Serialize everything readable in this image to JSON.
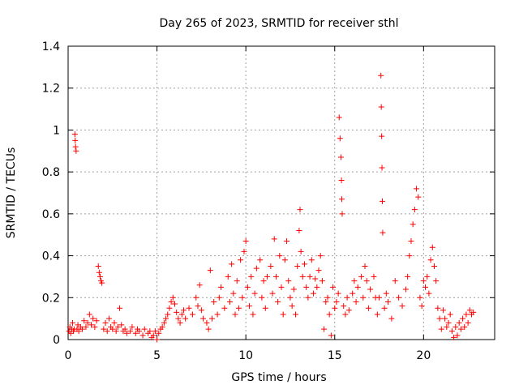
{
  "chart_data": {
    "type": "scatter",
    "title": "Day 265 of 2023, SRMTID for receiver sthl",
    "xlabel": "GPS time / hours",
    "ylabel": "SRMTID / TECUs",
    "xlim": [
      0,
      24
    ],
    "ylim": [
      0,
      1.4
    ],
    "xticks": [
      0,
      5,
      10,
      15,
      20
    ],
    "xtick_labels": [
      "0",
      "5",
      "10",
      "15",
      "20"
    ],
    "yticks": [
      0,
      0.2,
      0.4,
      0.6,
      0.8,
      1.0,
      1.2,
      1.4
    ],
    "ytick_labels": [
      "0",
      "0.2",
      "0.4",
      "0.6",
      "0.8",
      "1",
      "1.2",
      "1.4"
    ],
    "grid": true,
    "marker": "+",
    "marker_color": "#ff0000",
    "series": [
      {
        "name": "SRMTID",
        "points": [
          [
            0.05,
            0.04
          ],
          [
            0.1,
            0.06
          ],
          [
            0.15,
            0.03
          ],
          [
            0.2,
            0.05
          ],
          [
            0.25,
            0.08
          ],
          [
            0.3,
            0.04
          ],
          [
            0.35,
            0.05
          ],
          [
            0.38,
            0.98
          ],
          [
            0.4,
            0.95
          ],
          [
            0.42,
            0.92
          ],
          [
            0.45,
            0.9
          ],
          [
            0.5,
            0.05
          ],
          [
            0.55,
            0.07
          ],
          [
            0.6,
            0.04
          ],
          [
            0.7,
            0.06
          ],
          [
            0.8,
            0.05
          ],
          [
            0.9,
            0.09
          ],
          [
            1.0,
            0.06
          ],
          [
            1.1,
            0.08
          ],
          [
            1.2,
            0.12
          ],
          [
            1.3,
            0.07
          ],
          [
            1.4,
            0.1
          ],
          [
            1.5,
            0.06
          ],
          [
            1.6,
            0.09
          ],
          [
            1.7,
            0.35
          ],
          [
            1.75,
            0.32
          ],
          [
            1.8,
            0.3
          ],
          [
            1.85,
            0.28
          ],
          [
            1.9,
            0.27
          ],
          [
            2.0,
            0.05
          ],
          [
            2.1,
            0.08
          ],
          [
            2.2,
            0.04
          ],
          [
            2.3,
            0.1
          ],
          [
            2.4,
            0.06
          ],
          [
            2.5,
            0.05
          ],
          [
            2.6,
            0.08
          ],
          [
            2.7,
            0.04
          ],
          [
            2.8,
            0.06
          ],
          [
            2.9,
            0.15
          ],
          [
            3.0,
            0.07
          ],
          [
            3.1,
            0.04
          ],
          [
            3.2,
            0.05
          ],
          [
            3.3,
            0.03
          ],
          [
            3.5,
            0.04
          ],
          [
            3.6,
            0.06
          ],
          [
            3.8,
            0.03
          ],
          [
            3.9,
            0.05
          ],
          [
            4.0,
            0.04
          ],
          [
            4.2,
            0.02
          ],
          [
            4.3,
            0.05
          ],
          [
            4.5,
            0.03
          ],
          [
            4.6,
            0.04
          ],
          [
            4.7,
            0.01
          ],
          [
            4.8,
            0.02
          ],
          [
            4.9,
            0.04
          ],
          [
            5.0,
            0.0
          ],
          [
            5.1,
            0.03
          ],
          [
            5.2,
            0.05
          ],
          [
            5.3,
            0.06
          ],
          [
            5.4,
            0.08
          ],
          [
            5.5,
            0.1
          ],
          [
            5.6,
            0.12
          ],
          [
            5.7,
            0.15
          ],
          [
            5.8,
            0.18
          ],
          [
            5.9,
            0.2
          ],
          [
            6.0,
            0.17
          ],
          [
            6.1,
            0.13
          ],
          [
            6.2,
            0.1
          ],
          [
            6.3,
            0.08
          ],
          [
            6.4,
            0.12
          ],
          [
            6.5,
            0.14
          ],
          [
            6.6,
            0.1
          ],
          [
            6.8,
            0.15
          ],
          [
            7.0,
            0.12
          ],
          [
            7.2,
            0.2
          ],
          [
            7.3,
            0.16
          ],
          [
            7.4,
            0.26
          ],
          [
            7.5,
            0.14
          ],
          [
            7.6,
            0.1
          ],
          [
            7.8,
            0.08
          ],
          [
            7.9,
            0.05
          ],
          [
            8.0,
            0.33
          ],
          [
            8.1,
            0.1
          ],
          [
            8.2,
            0.18
          ],
          [
            8.4,
            0.12
          ],
          [
            8.5,
            0.2
          ],
          [
            8.6,
            0.25
          ],
          [
            8.8,
            0.15
          ],
          [
            9.0,
            0.3
          ],
          [
            9.1,
            0.18
          ],
          [
            9.2,
            0.36
          ],
          [
            9.3,
            0.22
          ],
          [
            9.4,
            0.12
          ],
          [
            9.5,
            0.28
          ],
          [
            9.6,
            0.15
          ],
          [
            9.7,
            0.38
          ],
          [
            9.8,
            0.2
          ],
          [
            9.9,
            0.42
          ],
          [
            10.0,
            0.47
          ],
          [
            10.1,
            0.25
          ],
          [
            10.2,
            0.16
          ],
          [
            10.3,
            0.3
          ],
          [
            10.4,
            0.12
          ],
          [
            10.5,
            0.22
          ],
          [
            10.6,
            0.34
          ],
          [
            10.8,
            0.38
          ],
          [
            10.9,
            0.2
          ],
          [
            11.0,
            0.28
          ],
          [
            11.1,
            0.15
          ],
          [
            11.2,
            0.3
          ],
          [
            11.4,
            0.35
          ],
          [
            11.5,
            0.22
          ],
          [
            11.6,
            0.48
          ],
          [
            11.7,
            0.3
          ],
          [
            11.8,
            0.18
          ],
          [
            11.9,
            0.4
          ],
          [
            12.0,
            0.25
          ],
          [
            12.1,
            0.12
          ],
          [
            12.2,
            0.38
          ],
          [
            12.3,
            0.47
          ],
          [
            12.4,
            0.28
          ],
          [
            12.5,
            0.2
          ],
          [
            12.6,
            0.16
          ],
          [
            12.7,
            0.24
          ],
          [
            12.8,
            0.12
          ],
          [
            12.9,
            0.35
          ],
          [
            13.0,
            0.52
          ],
          [
            13.05,
            0.62
          ],
          [
            13.1,
            0.42
          ],
          [
            13.2,
            0.3
          ],
          [
            13.3,
            0.36
          ],
          [
            13.4,
            0.25
          ],
          [
            13.5,
            0.2
          ],
          [
            13.6,
            0.3
          ],
          [
            13.7,
            0.38
          ],
          [
            13.8,
            0.22
          ],
          [
            13.9,
            0.29
          ],
          [
            14.0,
            0.25
          ],
          [
            14.1,
            0.33
          ],
          [
            14.2,
            0.4
          ],
          [
            14.3,
            0.28
          ],
          [
            14.4,
            0.05
          ],
          [
            14.5,
            0.18
          ],
          [
            14.6,
            0.2
          ],
          [
            14.7,
            0.12
          ],
          [
            14.8,
            0.02
          ],
          [
            14.9,
            0.25
          ],
          [
            15.0,
            0.15
          ],
          [
            15.1,
            0.18
          ],
          [
            15.2,
            0.22
          ],
          [
            15.25,
            1.06
          ],
          [
            15.3,
            0.96
          ],
          [
            15.35,
            0.87
          ],
          [
            15.38,
            0.76
          ],
          [
            15.4,
            0.67
          ],
          [
            15.42,
            0.6
          ],
          [
            15.5,
            0.16
          ],
          [
            15.6,
            0.12
          ],
          [
            15.7,
            0.2
          ],
          [
            15.8,
            0.14
          ],
          [
            16.0,
            0.22
          ],
          [
            16.1,
            0.28
          ],
          [
            16.2,
            0.18
          ],
          [
            16.3,
            0.25
          ],
          [
            16.5,
            0.3
          ],
          [
            16.6,
            0.2
          ],
          [
            16.7,
            0.35
          ],
          [
            16.8,
            0.28
          ],
          [
            16.9,
            0.15
          ],
          [
            17.0,
            0.24
          ],
          [
            17.2,
            0.3
          ],
          [
            17.3,
            0.2
          ],
          [
            17.4,
            0.12
          ],
          [
            17.5,
            0.2
          ],
          [
            17.6,
            1.26
          ],
          [
            17.62,
            1.11
          ],
          [
            17.64,
            0.97
          ],
          [
            17.66,
            0.82
          ],
          [
            17.68,
            0.66
          ],
          [
            17.7,
            0.51
          ],
          [
            17.8,
            0.15
          ],
          [
            17.9,
            0.22
          ],
          [
            18.0,
            0.18
          ],
          [
            18.2,
            0.1
          ],
          [
            18.4,
            0.28
          ],
          [
            18.6,
            0.2
          ],
          [
            18.8,
            0.16
          ],
          [
            19.0,
            0.24
          ],
          [
            19.1,
            0.3
          ],
          [
            19.2,
            0.4
          ],
          [
            19.3,
            0.47
          ],
          [
            19.4,
            0.55
          ],
          [
            19.5,
            0.62
          ],
          [
            19.6,
            0.72
          ],
          [
            19.7,
            0.68
          ],
          [
            19.8,
            0.2
          ],
          [
            19.9,
            0.16
          ],
          [
            20.0,
            0.28
          ],
          [
            20.1,
            0.25
          ],
          [
            20.2,
            0.3
          ],
          [
            20.3,
            0.22
          ],
          [
            20.4,
            0.38
          ],
          [
            20.5,
            0.44
          ],
          [
            20.6,
            0.35
          ],
          [
            20.7,
            0.28
          ],
          [
            20.8,
            0.15
          ],
          [
            20.9,
            0.1
          ],
          [
            21.0,
            0.05
          ],
          [
            21.1,
            0.14
          ],
          [
            21.2,
            0.1
          ],
          [
            21.3,
            0.06
          ],
          [
            21.4,
            0.08
          ],
          [
            21.5,
            0.12
          ],
          [
            21.6,
            0.04
          ],
          [
            21.7,
            0.01
          ],
          [
            21.8,
            0.06
          ],
          [
            21.9,
            0.02
          ],
          [
            22.0,
            0.08
          ],
          [
            22.1,
            0.05
          ],
          [
            22.2,
            0.1
          ],
          [
            22.3,
            0.06
          ],
          [
            22.4,
            0.12
          ],
          [
            22.5,
            0.08
          ],
          [
            22.6,
            0.14
          ],
          [
            22.7,
            0.12
          ],
          [
            22.8,
            0.13
          ]
        ]
      }
    ]
  }
}
